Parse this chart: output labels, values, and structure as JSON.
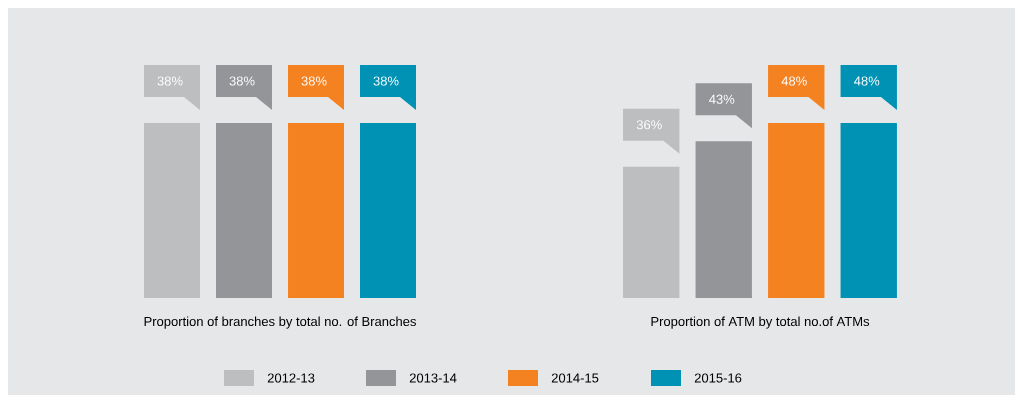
{
  "chart_data": [
    {
      "type": "bar",
      "xlabel": "Proportion of branches by total no. of Branches",
      "categories": [
        null
      ],
      "legend": "bottom",
      "series": [
        {
          "name": "2012-13",
          "color": "#bcbec0",
          "values": [
            38
          ],
          "value_labels": [
            "38%"
          ]
        },
        {
          "name": "2013-14",
          "color": "#939598",
          "values": [
            38
          ],
          "value_labels": [
            "38%"
          ]
        },
        {
          "name": "2014-15",
          "color": "#f58220",
          "values": [
            38
          ],
          "value_labels": [
            "38%"
          ]
        },
        {
          "name": "2015-16",
          "color": "#0092b5",
          "values": [
            38
          ],
          "value_labels": [
            "38%"
          ]
        }
      ]
    },
    {
      "type": "bar",
      "xlabel": "Proportion of ATM by total no.of ATMs",
      "categories": [
        null
      ],
      "series": [
        {
          "color": "#bcbec0",
          "values": [
            36
          ],
          "value_labels": [
            "36%"
          ]
        },
        {
          "color": "#939598",
          "values": [
            43
          ],
          "value_labels": [
            "43%"
          ]
        },
        {
          "color": "#f58220",
          "values": [
            48
          ],
          "value_labels": [
            "48%"
          ]
        },
        {
          "color": "#0092b5",
          "values": [
            48
          ],
          "value_labels": [
            "48%"
          ]
        }
      ]
    }
  ]
}
